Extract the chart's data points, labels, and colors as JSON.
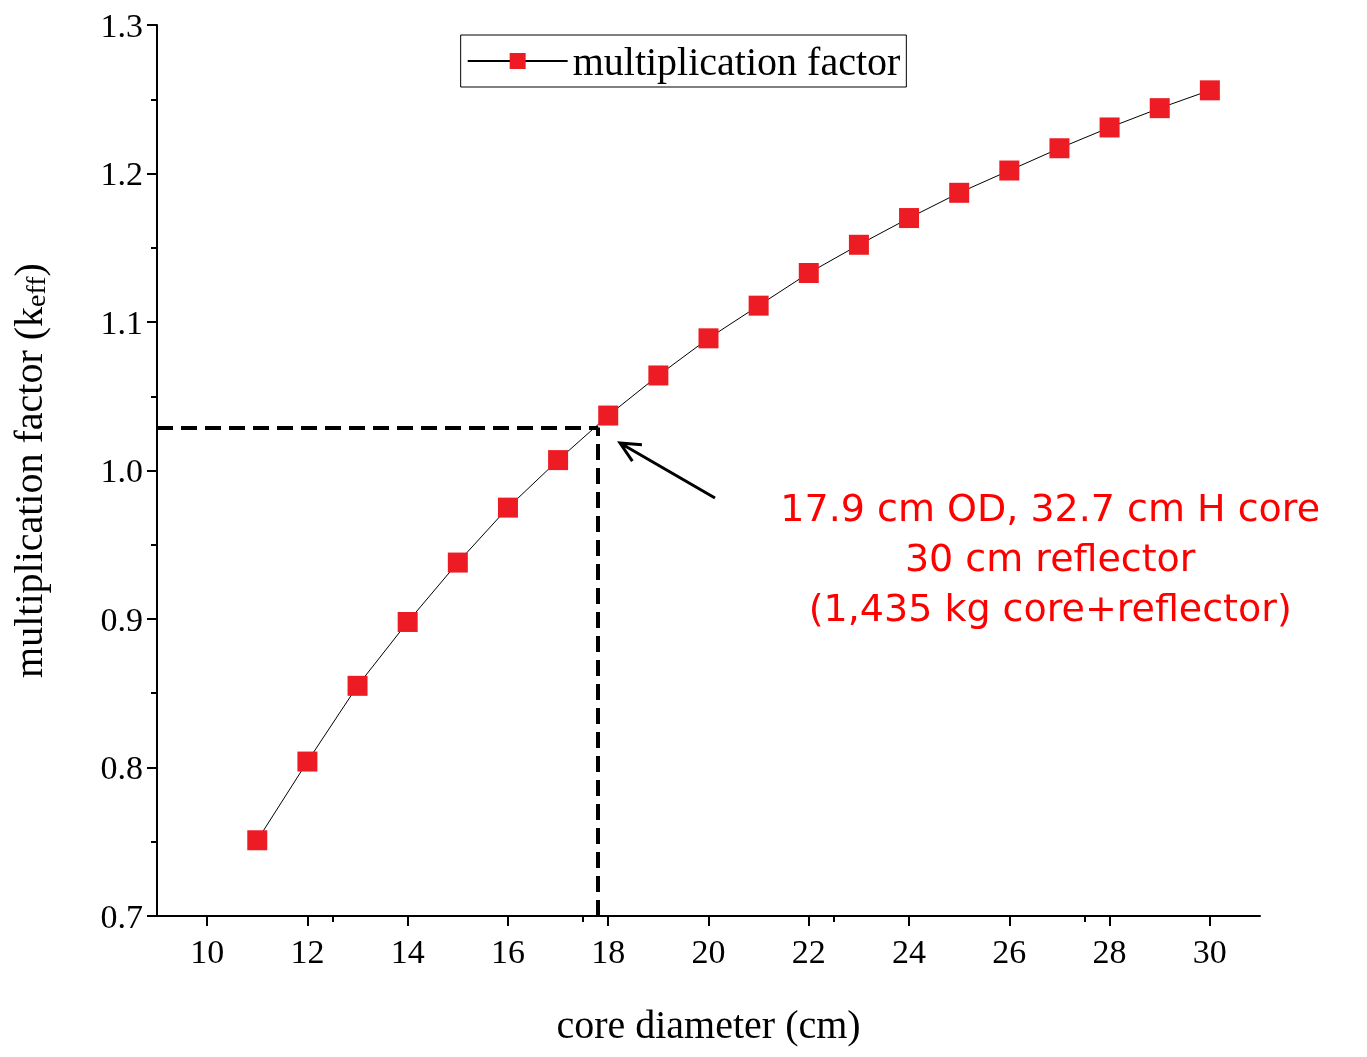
{
  "chart_data": {
    "type": "line",
    "xlabel": "core diameter (cm)",
    "ylabel": "multiplication factor (k$_{eff}$)",
    "x": [
      11,
      12,
      13,
      14,
      15,
      16,
      17,
      18,
      19,
      20,
      21,
      22,
      23,
      24,
      25,
      26,
      27,
      28,
      29,
      30
    ],
    "series": [
      {
        "name": "multiplication factor",
        "color": "#ed1c24",
        "values": [
          0.751,
          0.804,
          0.855,
          0.898,
          0.938,
          0.975,
          1.007,
          1.037,
          1.064,
          1.089,
          1.111,
          1.133,
          1.152,
          1.17,
          1.187,
          1.202,
          1.217,
          1.231,
          1.244,
          1.256
        ]
      }
    ],
    "xlim": [
      9,
      31
    ],
    "xticks": [
      10,
      12,
      14,
      16,
      18,
      20,
      22,
      24,
      26,
      28,
      30
    ],
    "ylim": [
      0.7,
      1.3
    ],
    "yticks": [
      0.7,
      0.8,
      0.9,
      {
        "value": 1.0,
        "label": "1.0"
      },
      1.1,
      1.2,
      1.3
    ],
    "ref_lines": [
      {
        "axis": "x",
        "value": 17.8,
        "color": "#000000",
        "line_style": "dashed"
      },
      {
        "axis": "y",
        "value": 1.029,
        "color": "#000000",
        "line_style": "dashed"
      }
    ],
    "annotations": [
      "17.9 cm OD, 32.7 cm H core\n30 cm reflector\n(1,435 kg core+reflector)"
    ],
    "marker": "square",
    "line_style": "solid",
    "grid": false,
    "legend": "top"
  }
}
